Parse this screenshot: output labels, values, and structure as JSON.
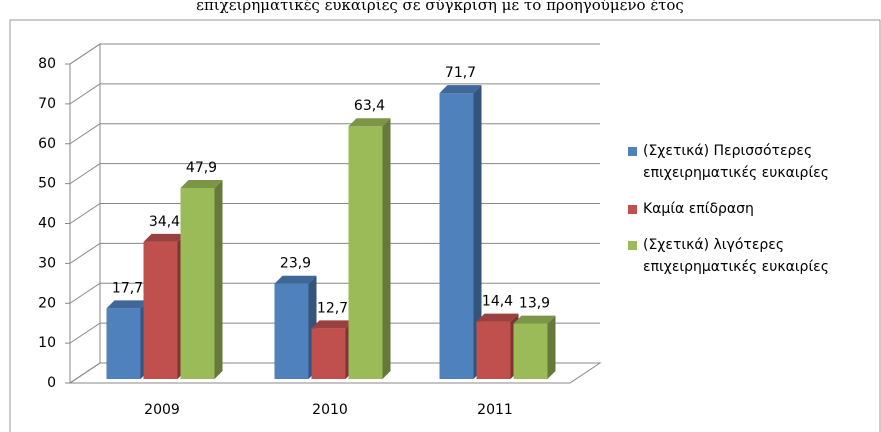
{
  "chart_data": {
    "type": "bar3d",
    "title": "επιχειρηματικές ευκαιρίες σε σύγκριση με το προηγούμενο έτος",
    "categories": [
      "2009",
      "2010",
      "2011"
    ],
    "series": [
      {
        "name": "(Σχετικά) Περισσότερες επιχειρηματικές ευκαιρίες",
        "color": "#4f81bd",
        "values": [
          17.7,
          23.9,
          71.7
        ],
        "value_labels": [
          "17,7",
          "23,9",
          "71,7"
        ]
      },
      {
        "name": "Καμία επίδραση",
        "color": "#c0504d",
        "values": [
          34.4,
          12.7,
          14.4
        ],
        "value_labels": [
          "34,4",
          "12,7",
          "14,4"
        ]
      },
      {
        "name": "(Σχετικά) λιγότερες επιχειρηματικές ευκαιρίες",
        "color": "#9bbb59",
        "values": [
          47.9,
          63.4,
          13.9
        ],
        "value_labels": [
          "47,9",
          "63,4",
          "13,9"
        ]
      }
    ],
    "ylim": [
      0,
      80
    ],
    "yticks": [
      0,
      10,
      20,
      30,
      40,
      50,
      60,
      70,
      80
    ],
    "grid": true,
    "legend": "right"
  }
}
